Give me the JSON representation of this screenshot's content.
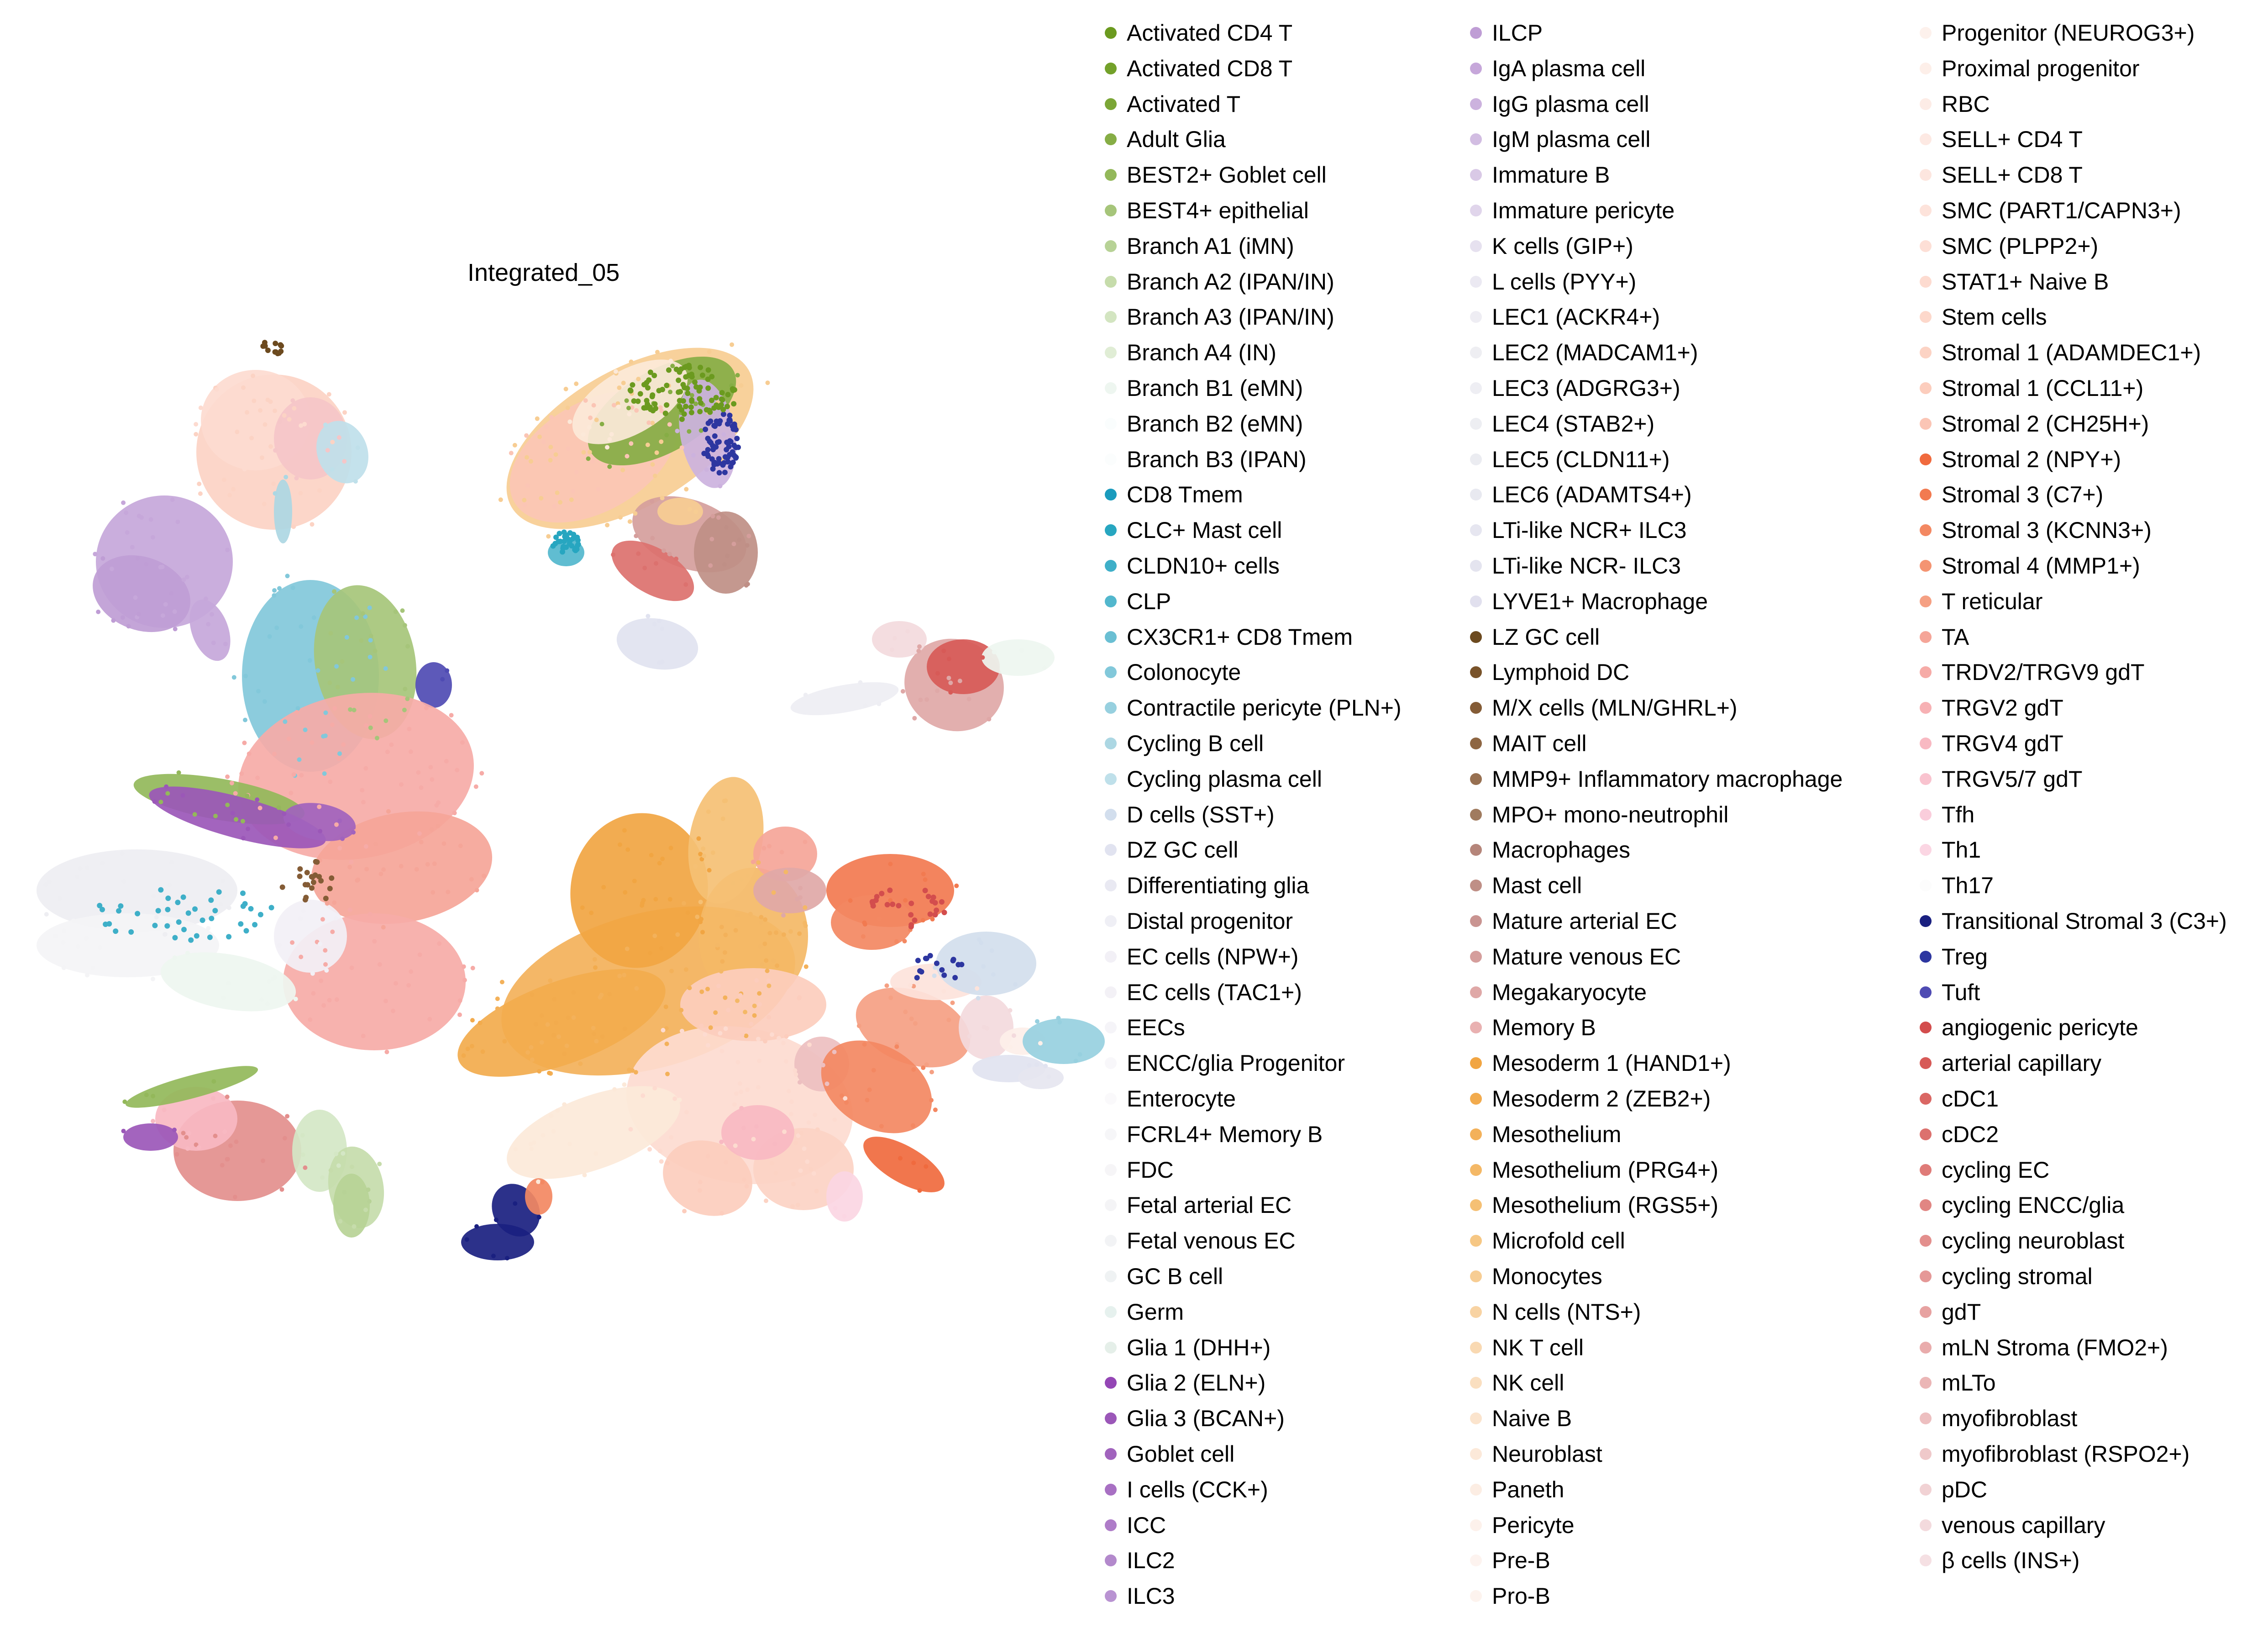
{
  "chart_data": {
    "type": "scatter",
    "title": "Integrated_05",
    "xlabel": "",
    "ylabel": "",
    "grid": false,
    "axes_visible": false,
    "legend_position": "right",
    "legend": [
      {
        "name": "Activated CD4 T",
        "color": "#6b9a1f"
      },
      {
        "name": "Activated CD8 T",
        "color": "#73a12a"
      },
      {
        "name": "Activated T",
        "color": "#7ba636"
      },
      {
        "name": "Adult Glia",
        "color": "#86ad45"
      },
      {
        "name": "BEST2+ Goblet cell",
        "color": "#93b85a"
      },
      {
        "name": "BEST4+ epithelial",
        "color": "#a6c57a"
      },
      {
        "name": "Branch A1 (iMN)",
        "color": "#b7d296"
      },
      {
        "name": "Branch A2 (IPAN/IN)",
        "color": "#c6dcab"
      },
      {
        "name": "Branch A3 (IPAN/IN)",
        "color": "#d3e5c1"
      },
      {
        "name": "Branch A4 (IN)",
        "color": "#e0edd5"
      },
      {
        "name": "Branch B1 (eMN)",
        "color": "#eef6f0"
      },
      {
        "name": "Branch B2 (eMN)",
        "color": "#fafdfd"
      },
      {
        "name": "Branch B3 (IPAN)",
        "color": "#fbfdfd"
      },
      {
        "name": "CD8 Tmem",
        "color": "#1a9bbd"
      },
      {
        "name": "CLC+ Mast cell",
        "color": "#27a6c0"
      },
      {
        "name": "CLDN10+ cells",
        "color": "#3eafc8"
      },
      {
        "name": "CLP",
        "color": "#52b7cd"
      },
      {
        "name": "CX3CR1+ CD8 Tmem",
        "color": "#6abfd3"
      },
      {
        "name": "Colonocyte",
        "color": "#82c8da"
      },
      {
        "name": "Contractile pericyte (PLN+)",
        "color": "#97d0df"
      },
      {
        "name": "Cycling B cell",
        "color": "#acd7e3"
      },
      {
        "name": "Cycling plasma cell",
        "color": "#bfe0ea"
      },
      {
        "name": "D cells (SST+)",
        "color": "#d2deed"
      },
      {
        "name": "DZ GC cell",
        "color": "#e1e3f0"
      },
      {
        "name": "Differentiating glia",
        "color": "#e9e9f2"
      },
      {
        "name": "Distal progenitor",
        "color": "#efeff5"
      },
      {
        "name": "EC cells (NPW+)",
        "color": "#f2f0f6"
      },
      {
        "name": "EC cells (TAC1+)",
        "color": "#f3f1f6"
      },
      {
        "name": "EECs",
        "color": "#f5f4f8"
      },
      {
        "name": "ENCC/glia Progenitor",
        "color": "#f8f7fa"
      },
      {
        "name": "Enterocyte",
        "color": "#faf9fb"
      },
      {
        "name": "FCRL4+ Memory B",
        "color": "#f6f6f8"
      },
      {
        "name": "FDC",
        "color": "#f6f5f7"
      },
      {
        "name": "Fetal arterial EC",
        "color": "#f4f4f6"
      },
      {
        "name": "Fetal venous EC",
        "color": "#f2f3f5"
      },
      {
        "name": "GC B cell",
        "color": "#eff2f3"
      },
      {
        "name": "Germ",
        "color": "#e6f1ee"
      },
      {
        "name": "Glia 1 (DHH+)",
        "color": "#e5efe9"
      },
      {
        "name": "Glia 2 (ELN+)",
        "color": "#9446b5"
      },
      {
        "name": "Glia 3 (BCAN+)",
        "color": "#9b57b8"
      },
      {
        "name": "Goblet cell",
        "color": "#a163bd"
      },
      {
        "name": "I cells (CCK+)",
        "color": "#a870c3"
      },
      {
        "name": "ICC",
        "color": "#ae7cc8"
      },
      {
        "name": "ILC2",
        "color": "#b389cc"
      },
      {
        "name": "ILC3",
        "color": "#b993d2"
      },
      {
        "name": "ILCP",
        "color": "#bf9dd5"
      },
      {
        "name": "IgA plasma cell",
        "color": "#c6a7da"
      },
      {
        "name": "IgG plasma cell",
        "color": "#ccb2de"
      },
      {
        "name": "IgM plasma cell",
        "color": "#d2bde2"
      },
      {
        "name": "Immature B",
        "color": "#d9c9e6"
      },
      {
        "name": "Immature pericyte",
        "color": "#e0d5eb"
      },
      {
        "name": "K cells (GIP+)",
        "color": "#e6e1ef"
      },
      {
        "name": "L cells (PYY+)",
        "color": "#ebe9f2"
      },
      {
        "name": "LEC1 (ACKR4+)",
        "color": "#eeedf3"
      },
      {
        "name": "LEC2 (MADCAM1+)",
        "color": "#eeeef2"
      },
      {
        "name": "LEC3 (ADGRG3+)",
        "color": "#eeeef3"
      },
      {
        "name": "LEC4 (STAB2+)",
        "color": "#edeef2"
      },
      {
        "name": "LEC5 (CLDN11+)",
        "color": "#ebecf1"
      },
      {
        "name": "LEC6 (ADAMTS4+)",
        "color": "#e8e9f0"
      },
      {
        "name": "LTi-like NCR+ ILC3",
        "color": "#e6e6f0"
      },
      {
        "name": "LTi-like NCR- ILC3",
        "color": "#e4e4ef"
      },
      {
        "name": "LYVE1+ Macrophage",
        "color": "#e1e0ee"
      },
      {
        "name": "LZ GC cell",
        "color": "#6c4a1f"
      },
      {
        "name": "Lymphoid DC",
        "color": "#79532a"
      },
      {
        "name": "M/X cells (MLN/GHRL+)",
        "color": "#845c36"
      },
      {
        "name": "MAIT cell",
        "color": "#8e6643"
      },
      {
        "name": "MMP9+ Inflammatory macrophage",
        "color": "#977051"
      },
      {
        "name": "MPO+ mono-neutrophil",
        "color": "#a07b5f"
      },
      {
        "name": "Macrophages",
        "color": "#b5857a"
      },
      {
        "name": "Mast cell",
        "color": "#bf8f86"
      },
      {
        "name": "Mature arterial EC",
        "color": "#c99491"
      },
      {
        "name": "Mature venous EC",
        "color": "#d59e9c"
      },
      {
        "name": "Megakaryocyte",
        "color": "#dfa8a7"
      },
      {
        "name": "Memory B",
        "color": "#e9b1b1"
      },
      {
        "name": "Mesoderm 1 (HAND1+)",
        "color": "#f1a542"
      },
      {
        "name": "Mesoderm 2 (ZEB2+)",
        "color": "#f2ab4d"
      },
      {
        "name": "Mesothelium",
        "color": "#f3b15a"
      },
      {
        "name": "Mesothelium (PRG4+)",
        "color": "#f4b866"
      },
      {
        "name": "Mesothelium (RGS5+)",
        "color": "#f5c074"
      },
      {
        "name": "Microfold cell",
        "color": "#f6c784"
      },
      {
        "name": "Monocytes",
        "color": "#f7cd93"
      },
      {
        "name": "N cells (NTS+)",
        "color": "#f8d3a3"
      },
      {
        "name": "NK T cell",
        "color": "#f9d9b2"
      },
      {
        "name": "NK cell",
        "color": "#fadfc0"
      },
      {
        "name": "Naive B",
        "color": "#fbe4cd"
      },
      {
        "name": "Neuroblast",
        "color": "#fce9d9"
      },
      {
        "name": "Paneth",
        "color": "#fcede3"
      },
      {
        "name": "Pericyte",
        "color": "#fdf1eb"
      },
      {
        "name": "Pre-B",
        "color": "#fdf3ef"
      },
      {
        "name": "Pro-B",
        "color": "#fdf3ee"
      },
      {
        "name": "Progenitor (NEUROG3+)",
        "color": "#fdf1ec"
      },
      {
        "name": "Proximal progenitor",
        "color": "#fdefe9"
      },
      {
        "name": "RBC",
        "color": "#fdece6"
      },
      {
        "name": "SELL+ CD4 T",
        "color": "#fde9e3"
      },
      {
        "name": "SELL+ CD8 T",
        "color": "#fde6df"
      },
      {
        "name": "SMC (PART1/CAPN3+)",
        "color": "#fde3db"
      },
      {
        "name": "SMC (PLPP2+)",
        "color": "#fddfd6"
      },
      {
        "name": "STAT1+ Naive B",
        "color": "#fddbd0"
      },
      {
        "name": "Stem cells",
        "color": "#fdd8cb"
      },
      {
        "name": "Stromal 1 (ADAMDEC1+)",
        "color": "#fcd3c4"
      },
      {
        "name": "Stromal 1 (CCL11+)",
        "color": "#fccdbd"
      },
      {
        "name": "Stromal 2 (CH25H+)",
        "color": "#fbc5b5"
      },
      {
        "name": "Stromal 2 (NPY+)",
        "color": "#f06a3e"
      },
      {
        "name": "Stromal 3 (C7+)",
        "color": "#f27a50"
      },
      {
        "name": "Stromal 3 (KCNN3+)",
        "color": "#f38862"
      },
      {
        "name": "Stromal 4 (MMP1+)",
        "color": "#f49472"
      },
      {
        "name": "T reticular",
        "color": "#f5a083"
      },
      {
        "name": "TA",
        "color": "#f5a598"
      },
      {
        "name": "TRDV2/TRGV9 gdT",
        "color": "#f6aba7"
      },
      {
        "name": "TRGV2 gdT",
        "color": "#f7b1b4"
      },
      {
        "name": "TRGV4 gdT",
        "color": "#f8b9c2"
      },
      {
        "name": "TRGV5/7 gdT",
        "color": "#f9c3cf"
      },
      {
        "name": "Tfh",
        "color": "#facddb"
      },
      {
        "name": "Th1",
        "color": "#fbd6e3"
      },
      {
        "name": "Th17",
        "color": "#fcfcfc"
      },
      {
        "name": "Transitional Stromal 3 (C3+)",
        "color": "#1a2080"
      },
      {
        "name": "Treg",
        "color": "#2d36a0"
      },
      {
        "name": "Tuft",
        "color": "#4f4bb3"
      },
      {
        "name": "angiogenic pericyte",
        "color": "#d34d4d"
      },
      {
        "name": "arterial capillary",
        "color": "#d75a57"
      },
      {
        "name": "cDC1",
        "color": "#da6764"
      },
      {
        "name": "cDC2",
        "color": "#dc716e"
      },
      {
        "name": "cycling EC",
        "color": "#df7b78"
      },
      {
        "name": "cycling ENCC/glia",
        "color": "#e18683"
      },
      {
        "name": "cycling neuroblast",
        "color": "#e38f8d"
      },
      {
        "name": "cycling stromal",
        "color": "#e59897"
      },
      {
        "name": "gdT",
        "color": "#e7a2a1"
      },
      {
        "name": "mLN Stroma (FMO2+)",
        "color": "#e9acac"
      },
      {
        "name": "mLTo",
        "color": "#ebb6b6"
      },
      {
        "name": "myofibroblast",
        "color": "#edbfc0"
      },
      {
        "name": "myofibroblast (RSPO2+)",
        "color": "#efc9ca"
      },
      {
        "name": "pDC",
        "color": "#f1d2d4"
      },
      {
        "name": "venous capillary",
        "color": "#f3dadd"
      },
      {
        "name": "β cells (INS+)",
        "color": "#f5e0e3"
      }
    ]
  }
}
